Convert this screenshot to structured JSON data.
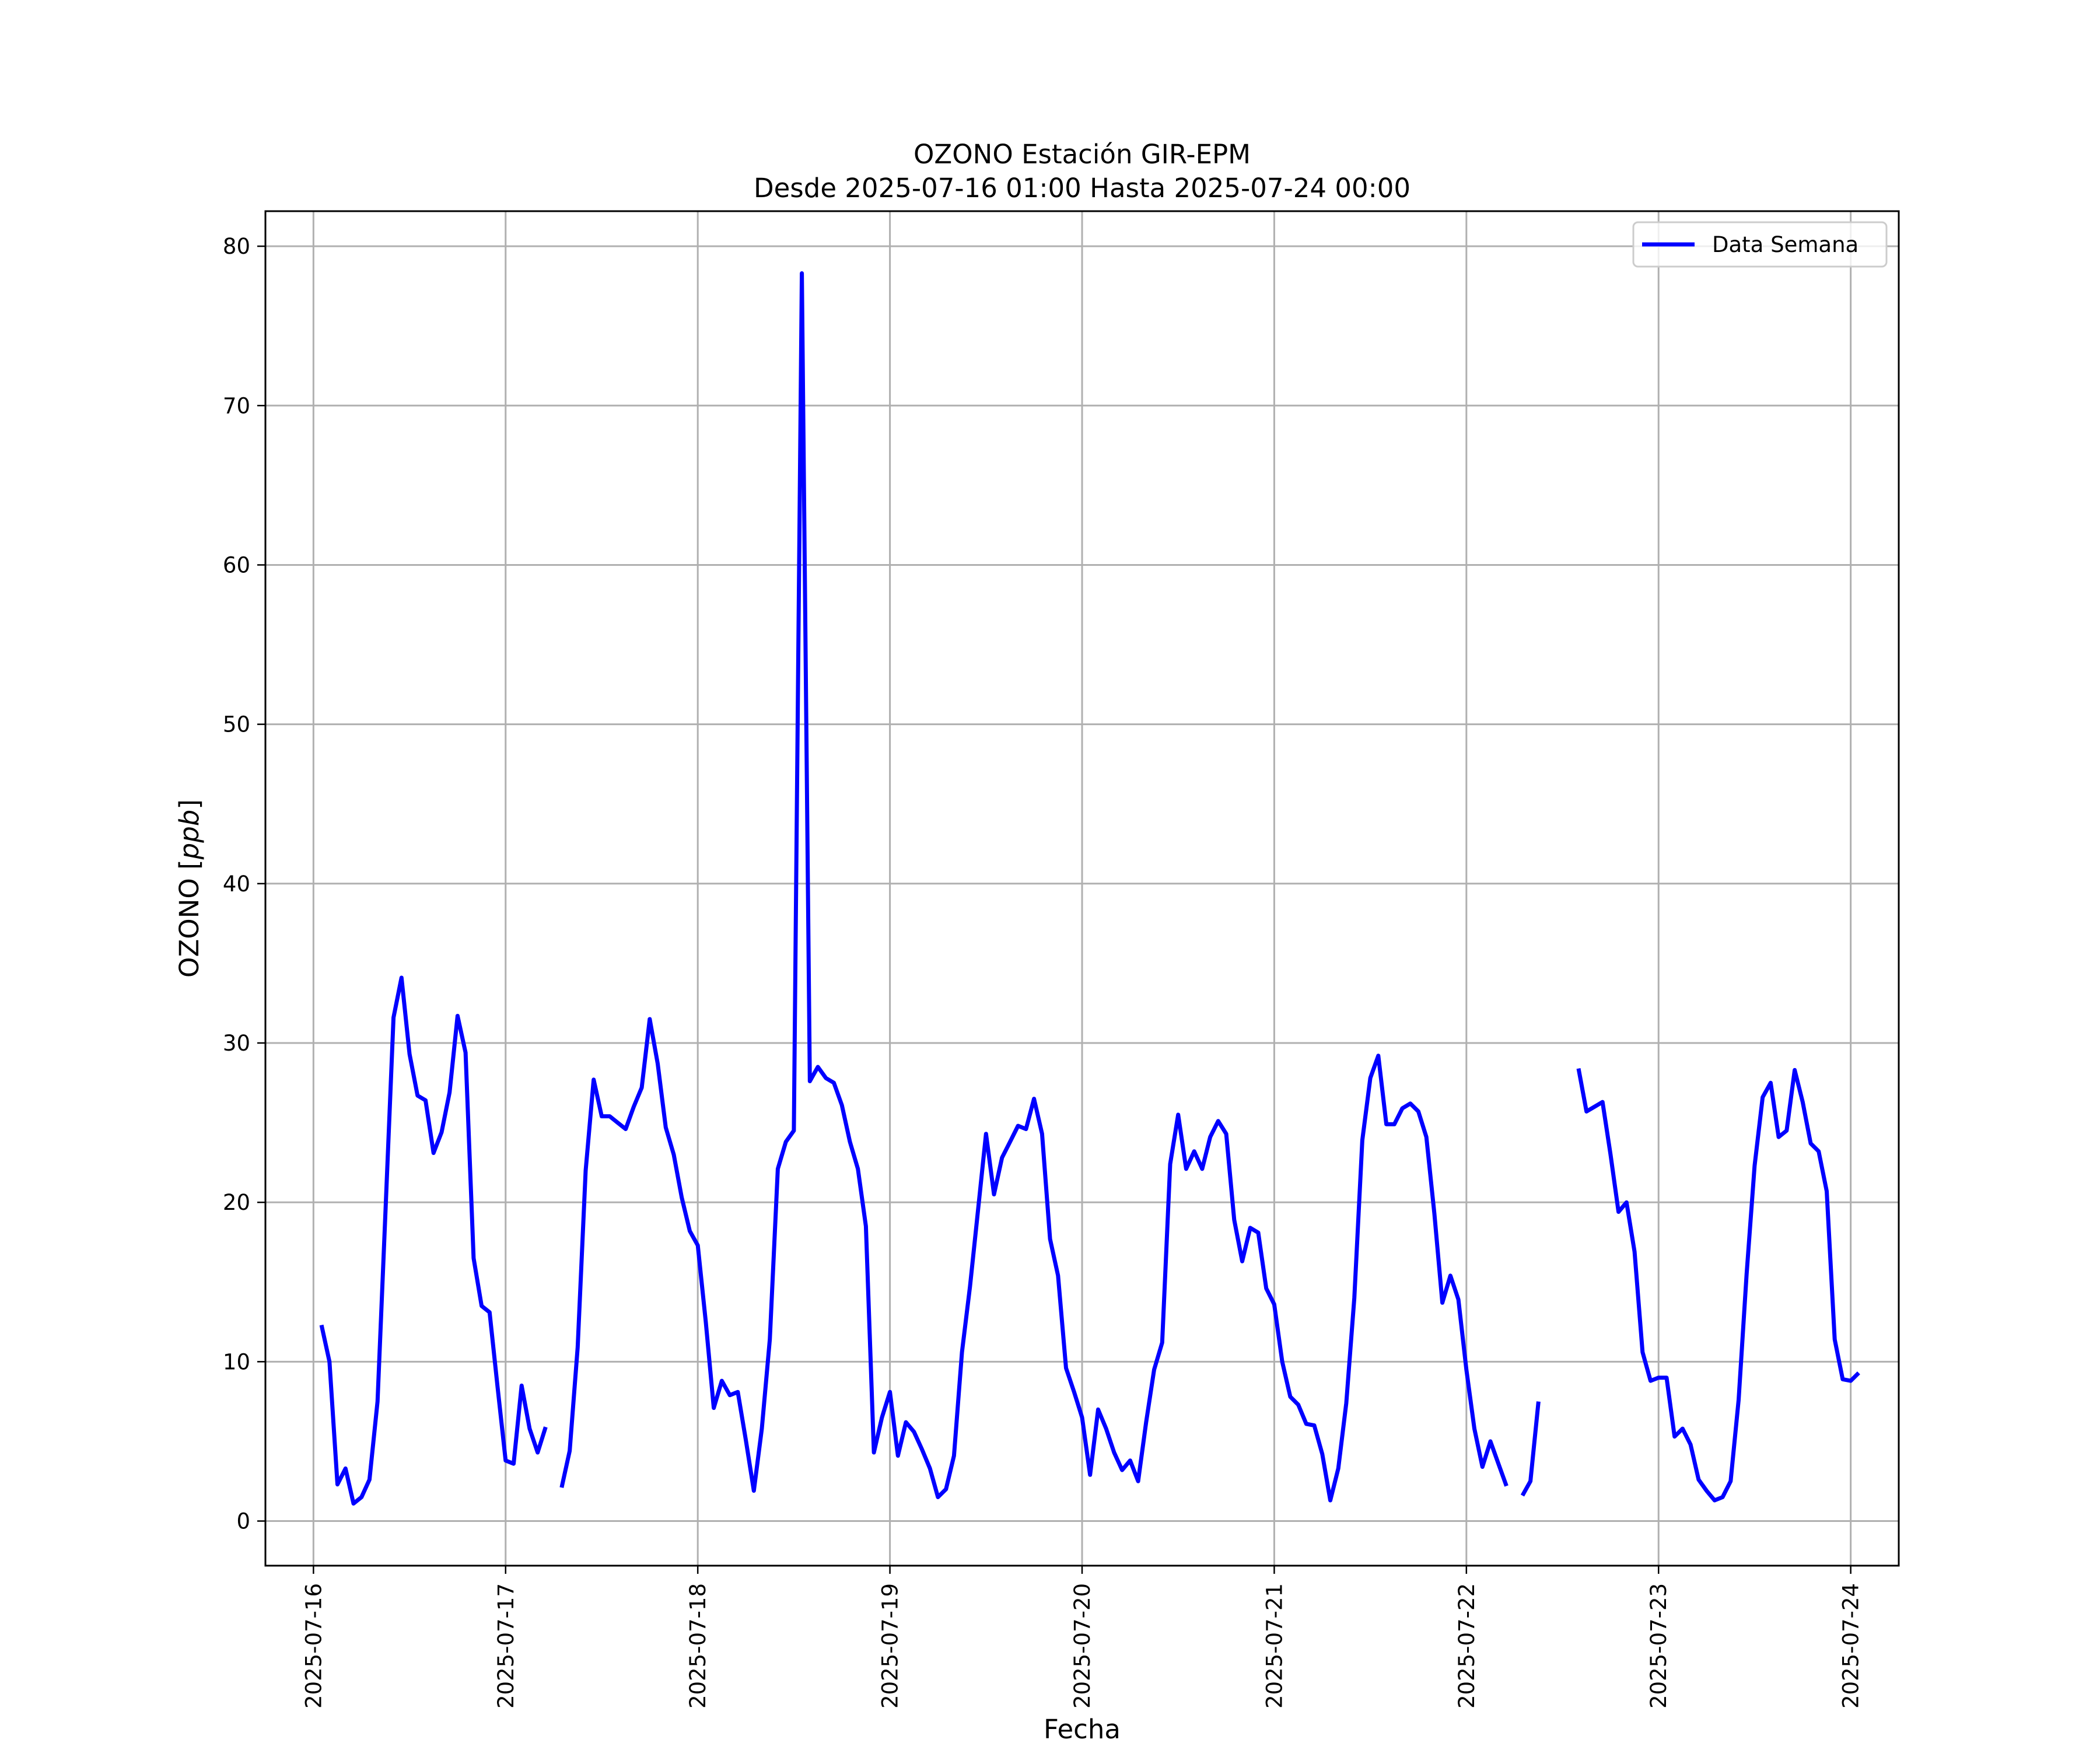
{
  "chart_data": {
    "type": "line",
    "title": "OZONO Estación GIR-EPM",
    "subtitle": "Desde 2025-07-16 01:00 Hasta 2025-07-24 00:00",
    "xlabel": "Fecha",
    "ylabel": "OZONO [ppb]",
    "ylabel_prefix": "OZONO [",
    "ylabel_unit": "ppb",
    "ylabel_suffix": "]",
    "xlim": [
      "2025-07-15 18:00",
      "2025-07-24 06:00"
    ],
    "ylim": [
      -2.8,
      82.2
    ],
    "xticks": [
      "2025-07-16",
      "2025-07-17",
      "2025-07-18",
      "2025-07-19",
      "2025-07-20",
      "2025-07-21",
      "2025-07-22",
      "2025-07-23",
      "2025-07-24"
    ],
    "yticks": [
      0,
      10,
      20,
      30,
      40,
      50,
      60,
      70,
      80
    ],
    "ytick_labels": [
      "0",
      "10",
      "20",
      "30",
      "40",
      "50",
      "60",
      "70",
      "80"
    ],
    "grid": true,
    "legend_position": "top-right",
    "series": [
      {
        "name": "Data Semana",
        "color": "#0000ff",
        "start": "2025-07-16 01:00",
        "step_hours": 1,
        "values": [
          12.3,
          10.0,
          2.3,
          3.3,
          1.1,
          1.5,
          2.6,
          7.5,
          19.5,
          31.6,
          34.1,
          29.3,
          26.7,
          26.4,
          23.1,
          24.4,
          26.9,
          31.7,
          29.4,
          16.5,
          13.5,
          13.1,
          8.4,
          3.8,
          3.6,
          8.5,
          5.8,
          4.3,
          5.9,
          null,
          2.1,
          4.4,
          10.9,
          22.0,
          27.7,
          25.4,
          25.4,
          25.0,
          24.6,
          26.0,
          27.2,
          31.5,
          28.7,
          24.7,
          23.0,
          20.3,
          18.2,
          17.3,
          12.5,
          7.1,
          8.8,
          7.9,
          8.1,
          5.1,
          1.9,
          5.8,
          11.4,
          22.1,
          23.8,
          24.5,
          78.3,
          27.6,
          28.5,
          27.8,
          27.5,
          26.1,
          23.8,
          22.1,
          18.5,
          4.3,
          6.5,
          8.1,
          4.1,
          6.2,
          5.6,
          4.5,
          3.3,
          1.5,
          2.0,
          4.1,
          10.6,
          14.7,
          19.5,
          24.3,
          20.5,
          22.8,
          23.8,
          24.8,
          24.6,
          26.5,
          24.3,
          17.7,
          15.4,
          9.6,
          8.1,
          6.5,
          2.9,
          7.0,
          5.8,
          4.3,
          3.2,
          3.8,
          2.5,
          6.2,
          9.5,
          11.2,
          22.4,
          25.5,
          22.1,
          23.2,
          22.1,
          24.1,
          25.1,
          24.3,
          18.9,
          16.3,
          18.4,
          18.1,
          14.6,
          13.6,
          10.0,
          7.8,
          7.3,
          6.1,
          6.0,
          4.2,
          1.3,
          3.3,
          7.4,
          14.0,
          23.9,
          27.8,
          29.2,
          24.9,
          24.9,
          25.9,
          26.2,
          25.7,
          24.1,
          19.3,
          13.7,
          15.4,
          13.9,
          9.5,
          5.8,
          3.4,
          5.0,
          3.6,
          2.2,
          null,
          1.6,
          2.5,
          7.5,
          null,
          null,
          null,
          null,
          28.4,
          25.7,
          26.0,
          26.3,
          23.0,
          19.4,
          20.0,
          16.9,
          10.6,
          8.8,
          9.0,
          9.0,
          5.3,
          5.8,
          4.8,
          2.6,
          1.9,
          1.3,
          1.5,
          2.5,
          7.6,
          15.5,
          22.3,
          26.6,
          27.5,
          24.1,
          24.5,
          28.3,
          26.3,
          23.7,
          23.2,
          20.7,
          11.4,
          8.9,
          8.8,
          9.3
        ]
      }
    ]
  }
}
